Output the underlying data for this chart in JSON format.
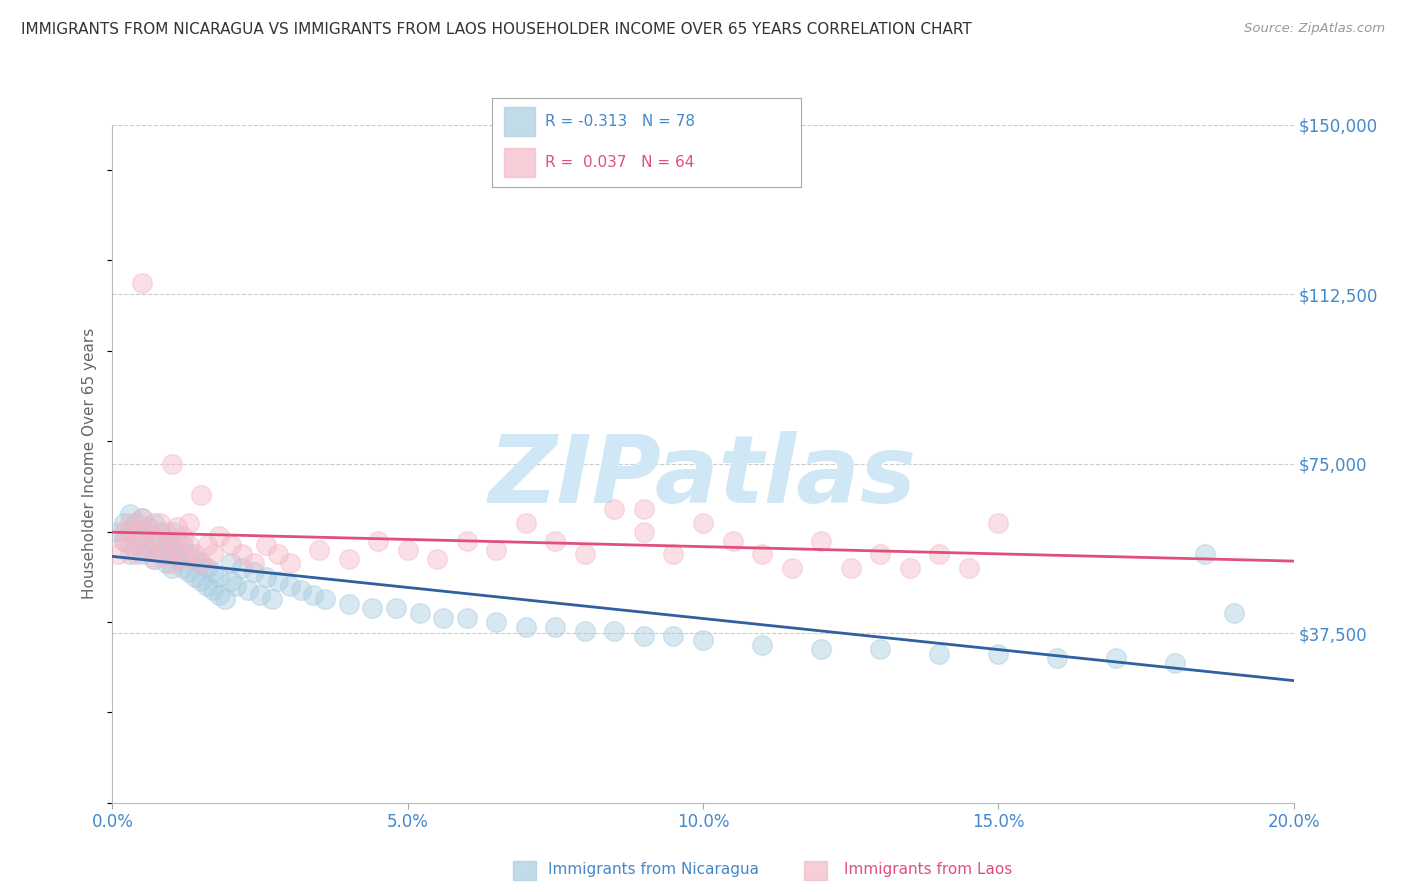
{
  "title": "IMMIGRANTS FROM NICARAGUA VS IMMIGRANTS FROM LAOS HOUSEHOLDER INCOME OVER 65 YEARS CORRELATION CHART",
  "source": "Source: ZipAtlas.com",
  "ylabel": "Householder Income Over 65 years",
  "xlim": [
    0.0,
    0.2
  ],
  "ylim": [
    0,
    150000
  ],
  "yticks": [
    0,
    37500,
    75000,
    112500,
    150000
  ],
  "ytick_labels": [
    "",
    "$37,500",
    "$75,000",
    "$112,500",
    "$150,000"
  ],
  "xticks": [
    0.0,
    0.05,
    0.1,
    0.15,
    0.2
  ],
  "xtick_labels": [
    "0.0%",
    "5.0%",
    "10.0%",
    "15.0%",
    "20.0%"
  ],
  "color_nicaragua": "#a8cce0",
  "color_laos": "#f4b8c8",
  "trend_color_nicaragua": "#3060a0",
  "trend_color_laos": "#e0507a",
  "R_nicaragua": -0.313,
  "N_nicaragua": 78,
  "R_laos": 0.037,
  "N_laos": 64,
  "legend_label_nicaragua": "Immigrants from Nicaragua",
  "legend_label_laos": "Immigrants from Laos",
  "watermark": "ZIPatlas",
  "watermark_color": "#d0e8f5",
  "background_color": "#ffffff",
  "grid_color": "#cccccc",
  "axis_label_color": "#666666",
  "title_color": "#333333",
  "tick_label_color": "#4488cc",
  "legend_text_color_nicaragua": "#4488cc",
  "legend_text_color_laos": "#e0507a",
  "scatter_alpha": 0.45,
  "scatter_size": 200,
  "nicaragua_x": [
    0.001,
    0.002,
    0.002,
    0.003,
    0.003,
    0.003,
    0.004,
    0.004,
    0.005,
    0.005,
    0.005,
    0.006,
    0.006,
    0.007,
    0.007,
    0.007,
    0.008,
    0.008,
    0.009,
    0.009,
    0.01,
    0.01,
    0.01,
    0.011,
    0.011,
    0.012,
    0.012,
    0.013,
    0.013,
    0.014,
    0.014,
    0.015,
    0.015,
    0.016,
    0.016,
    0.017,
    0.017,
    0.018,
    0.018,
    0.019,
    0.02,
    0.02,
    0.021,
    0.022,
    0.023,
    0.024,
    0.025,
    0.026,
    0.027,
    0.028,
    0.03,
    0.032,
    0.034,
    0.036,
    0.04,
    0.044,
    0.048,
    0.052,
    0.056,
    0.06,
    0.065,
    0.07,
    0.075,
    0.08,
    0.085,
    0.09,
    0.095,
    0.1,
    0.11,
    0.12,
    0.13,
    0.14,
    0.15,
    0.16,
    0.17,
    0.18,
    0.185,
    0.19
  ],
  "nicaragua_y": [
    60000,
    58000,
    62000,
    55000,
    60000,
    64000,
    57000,
    62000,
    55000,
    59000,
    63000,
    56000,
    61000,
    54000,
    58000,
    62000,
    55000,
    60000,
    53000,
    57000,
    52000,
    56000,
    60000,
    54000,
    58000,
    52000,
    57000,
    51000,
    55000,
    50000,
    54000,
    49000,
    53000,
    48000,
    52000,
    47000,
    51000,
    46000,
    50000,
    45000,
    49000,
    53000,
    48000,
    52000,
    47000,
    51000,
    46000,
    50000,
    45000,
    49000,
    48000,
    47000,
    46000,
    45000,
    44000,
    43000,
    43000,
    42000,
    41000,
    41000,
    40000,
    39000,
    39000,
    38000,
    38000,
    37000,
    37000,
    36000,
    35000,
    34000,
    34000,
    33000,
    33000,
    32000,
    32000,
    31000,
    55000,
    42000
  ],
  "laos_x": [
    0.001,
    0.002,
    0.002,
    0.003,
    0.003,
    0.004,
    0.004,
    0.005,
    0.005,
    0.006,
    0.006,
    0.007,
    0.007,
    0.008,
    0.008,
    0.009,
    0.009,
    0.01,
    0.01,
    0.011,
    0.011,
    0.012,
    0.012,
    0.013,
    0.013,
    0.014,
    0.015,
    0.016,
    0.017,
    0.018,
    0.02,
    0.022,
    0.024,
    0.026,
    0.028,
    0.03,
    0.035,
    0.04,
    0.045,
    0.05,
    0.055,
    0.06,
    0.065,
    0.07,
    0.075,
    0.08,
    0.085,
    0.09,
    0.095,
    0.1,
    0.105,
    0.11,
    0.115,
    0.12,
    0.125,
    0.13,
    0.135,
    0.14,
    0.145,
    0.15,
    0.005,
    0.01,
    0.015,
    0.09
  ],
  "laos_y": [
    55000,
    58000,
    60000,
    57000,
    62000,
    55000,
    60000,
    58000,
    63000,
    56000,
    61000,
    54000,
    59000,
    57000,
    62000,
    55000,
    60000,
    53000,
    58000,
    56000,
    61000,
    54000,
    59000,
    57000,
    62000,
    55000,
    53000,
    57000,
    55000,
    59000,
    57000,
    55000,
    53000,
    57000,
    55000,
    53000,
    56000,
    54000,
    58000,
    56000,
    54000,
    58000,
    56000,
    62000,
    58000,
    55000,
    65000,
    60000,
    55000,
    62000,
    58000,
    55000,
    52000,
    58000,
    52000,
    55000,
    52000,
    55000,
    52000,
    62000,
    115000,
    75000,
    68000,
    65000
  ]
}
